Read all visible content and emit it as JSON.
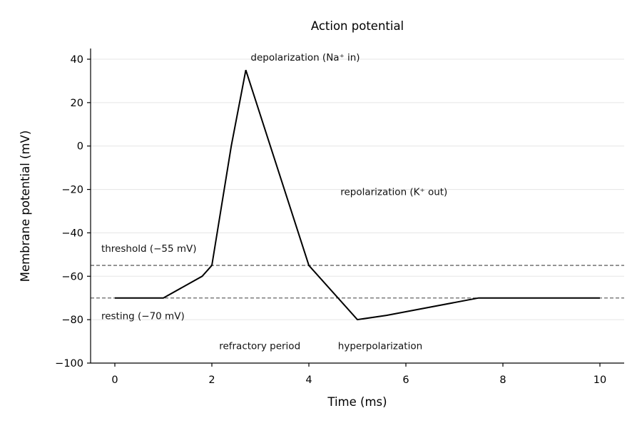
{
  "chart_data": {
    "type": "line",
    "title": "Action potential",
    "xlabel": "Time (ms)",
    "ylabel": "Membrane potential (mV)",
    "xlim": [
      -0.5,
      10.5
    ],
    "ylim": [
      -100,
      45
    ],
    "xticks": [
      0,
      2,
      4,
      6,
      8,
      10
    ],
    "yticks": [
      40,
      20,
      0,
      -20,
      -40,
      -60,
      -80,
      -100
    ],
    "ytick_labels": [
      "40",
      "20",
      "0",
      "−20",
      "−40",
      "−60",
      "−80",
      "−100"
    ],
    "grid": "horizontal",
    "series": [
      {
        "x": [
          0,
          1,
          1.8,
          2.0,
          2.4,
          2.7,
          4.0,
          5.0,
          5.6,
          7.5,
          10
        ],
        "y": [
          -70,
          -70,
          -60,
          -55,
          0,
          35,
          -55,
          -80,
          -78,
          -70,
          -70
        ]
      }
    ],
    "reference_lines": [
      {
        "y": -55,
        "label": "threshold (−55 mV)"
      },
      {
        "y": -70,
        "label": "resting (−70 mV)"
      }
    ],
    "annotations": [
      {
        "text": "depolarization (Na⁺ in)",
        "x": 2.8,
        "y": 41
      },
      {
        "text": "repolarization (K⁺ out)",
        "x": 4.65,
        "y": -21
      },
      {
        "text": "refractory period",
        "x": 2.15,
        "y": -92
      },
      {
        "text": "hyperpolarization",
        "x": 4.6,
        "y": -92
      }
    ]
  }
}
